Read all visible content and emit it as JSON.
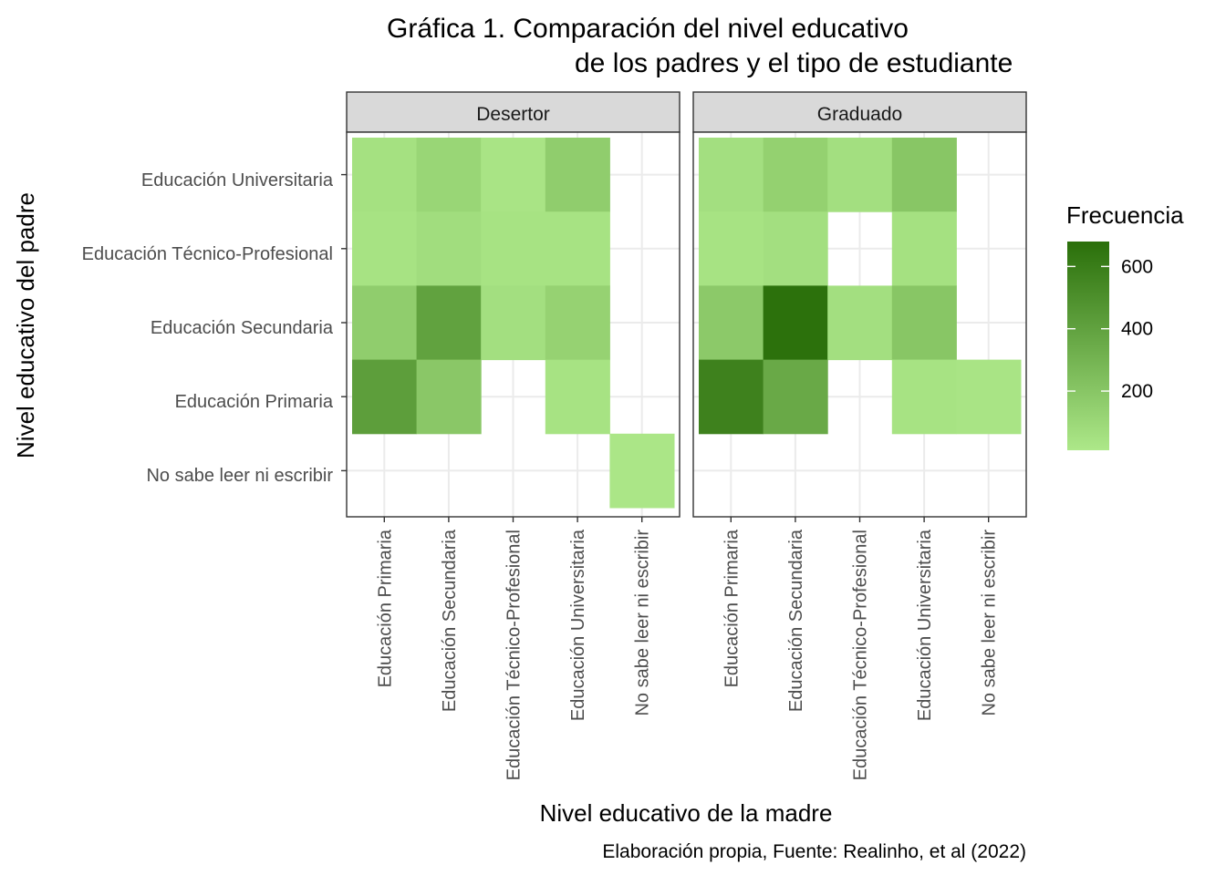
{
  "chart_data": {
    "type": "heatmap",
    "title_lines": [
      "Gráfica 1. Comparación del nivel educativo",
      "de los padres y el tipo de estudiante"
    ],
    "xlabel": "Nivel educativo de la madre",
    "ylabel": "Nivel educativo del padre",
    "caption": "Elaboración propia, Fuente: Realinho, et al (2022)",
    "x_categories": [
      "Educación Primaria",
      "Educación Secundaria",
      "Educación Técnico-Profesional",
      "Educación Universitaria",
      "No sabe leer ni escribir"
    ],
    "y_categories": [
      "Educación Universitaria",
      "Educación Técnico-Profesional",
      "Educación Secundaria",
      "Educación Primaria",
      "No sabe leer ni escribir"
    ],
    "facets": [
      {
        "name": "Desertor",
        "values": [
          [
            50,
            110,
            30,
            160,
            null
          ],
          [
            40,
            70,
            40,
            40,
            null
          ],
          [
            160,
            400,
            60,
            130,
            null
          ],
          [
            420,
            190,
            null,
            40,
            null
          ],
          [
            null,
            null,
            null,
            null,
            20
          ]
        ]
      },
      {
        "name": "Graduado",
        "values": [
          [
            60,
            140,
            60,
            200,
            null
          ],
          [
            40,
            60,
            null,
            50,
            null
          ],
          [
            180,
            670,
            60,
            200,
            null
          ],
          [
            580,
            360,
            null,
            40,
            30
          ],
          [
            null,
            null,
            null,
            null,
            null
          ]
        ]
      }
    ],
    "legend": {
      "title": "Frecuencia",
      "min": 10,
      "max": 680,
      "ticks": [
        200,
        400,
        600
      ],
      "low_color": "#ade889",
      "high_color": "#2a6f0a"
    },
    "panel_strip_color": "#d9d9d9",
    "grid": true
  }
}
